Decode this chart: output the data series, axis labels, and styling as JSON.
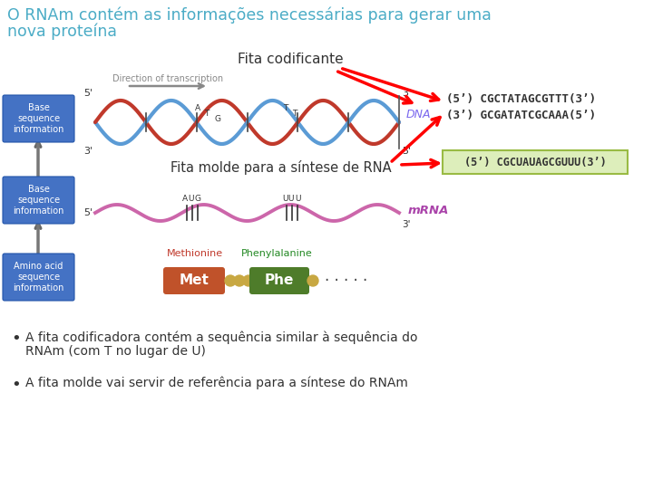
{
  "title_line1": "O RNAm contém as informações necessárias para gerar uma",
  "title_line2": "nova proteína",
  "title_color": "#4BACC6",
  "background_color": "#FFFFFF",
  "label_fita_codificante": "Fita codificante",
  "label_fita_molde": "Fita molde para a síntese de RNA",
  "label_direction": "Direction of transcription",
  "label_dna": "DNA",
  "label_mrna": "mRNA",
  "label_methionine": "Methionine",
  "label_phenylalanine": "Phenylalanine",
  "seq_top1": "(5’) CGCTATAGCGTTT(3’)",
  "seq_top2": "(3’) GCGATATCGCAAA(5’)",
  "seq_mrna_box": "(5’) CGCUAUAGCGUUU(3’)",
  "mrna_box_bg": "#DDEEBB",
  "bullet1": "A fita codificadora contém a sequência similar à sequência do\nRNAm (com T no lugar de U)",
  "bullet2": "A fita molde vai servir de referência para a síntese do RNAm",
  "box_base_seq_color": "#4472C4",
  "box_amino_color": "#4472C4",
  "box_met_color": "#C0522A",
  "box_phe_color": "#4E7C2A",
  "arrow_color": "#FF0000",
  "helix_color1": "#C0392B",
  "helix_color2": "#5B9BD5",
  "mrna_color": "#CC66AA",
  "dna_label_color": "#7B68EE",
  "mrna_label_color": "#AA44AA"
}
